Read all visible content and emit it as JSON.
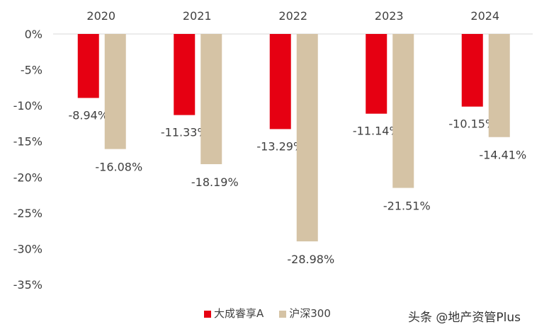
{
  "chart_data": {
    "type": "bar",
    "categories": [
      "2020",
      "2021",
      "2022",
      "2023",
      "2024"
    ],
    "series": [
      {
        "name": "大成睿享A",
        "color": "#E60012",
        "values": [
          -8.94,
          -11.33,
          -13.29,
          -11.14,
          -10.15
        ]
      },
      {
        "name": "沪深300",
        "color": "#D5C3A5",
        "values": [
          -16.08,
          -18.19,
          -28.98,
          -21.51,
          -14.41
        ]
      }
    ],
    "yticks": [
      "0%",
      "-5%",
      "-10%",
      "-15%",
      "-20%",
      "-25%",
      "-30%",
      "-35%"
    ],
    "ylim": [
      -35,
      0
    ],
    "data_labels": [
      [
        "-8.94%",
        "-11.33%",
        "-13.29%",
        "-11.14%",
        "-10.15%"
      ],
      [
        "-16.08%",
        "-18.19%",
        "-28.98%",
        "-21.51%",
        "-14.41%"
      ]
    ],
    "legend_position": "bottom",
    "grid": false
  },
  "watermark": "头条 @地产资管Plus"
}
